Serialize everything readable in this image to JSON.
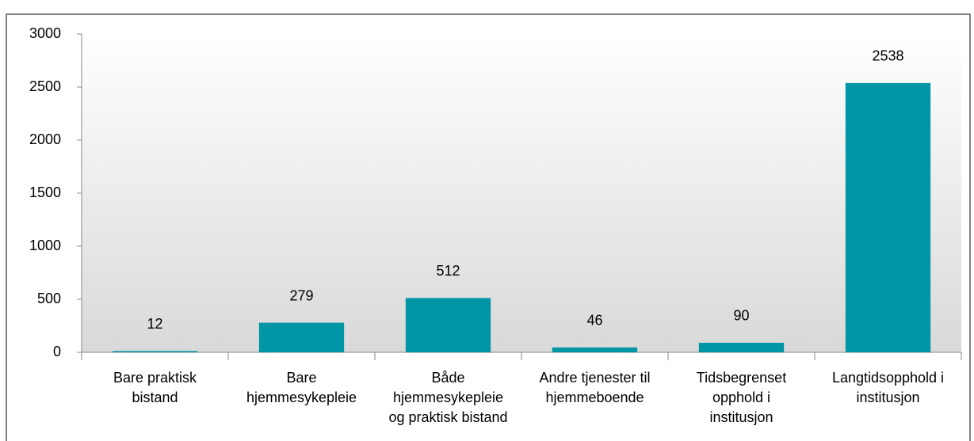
{
  "chart_data": {
    "type": "bar",
    "categories": [
      [
        "Bare praktisk",
        "bistand"
      ],
      [
        "Bare",
        "hjemmesykepleie"
      ],
      [
        "Både",
        "hjemmesykepleie",
        "og praktisk bistand"
      ],
      [
        "Andre tjenester til",
        "hjemmeboende"
      ],
      [
        "Tidsbegrenset",
        "opphold i",
        "institusjon"
      ],
      [
        "Langtidsopphold i",
        "institusjon"
      ]
    ],
    "values": [
      12,
      279,
      512,
      46,
      90,
      2538
    ],
    "color": "#0096a6",
    "ylim": [
      0,
      3000
    ],
    "yticks": [
      0,
      500,
      1000,
      1500,
      2000,
      2500,
      3000
    ],
    "grid": false
  }
}
